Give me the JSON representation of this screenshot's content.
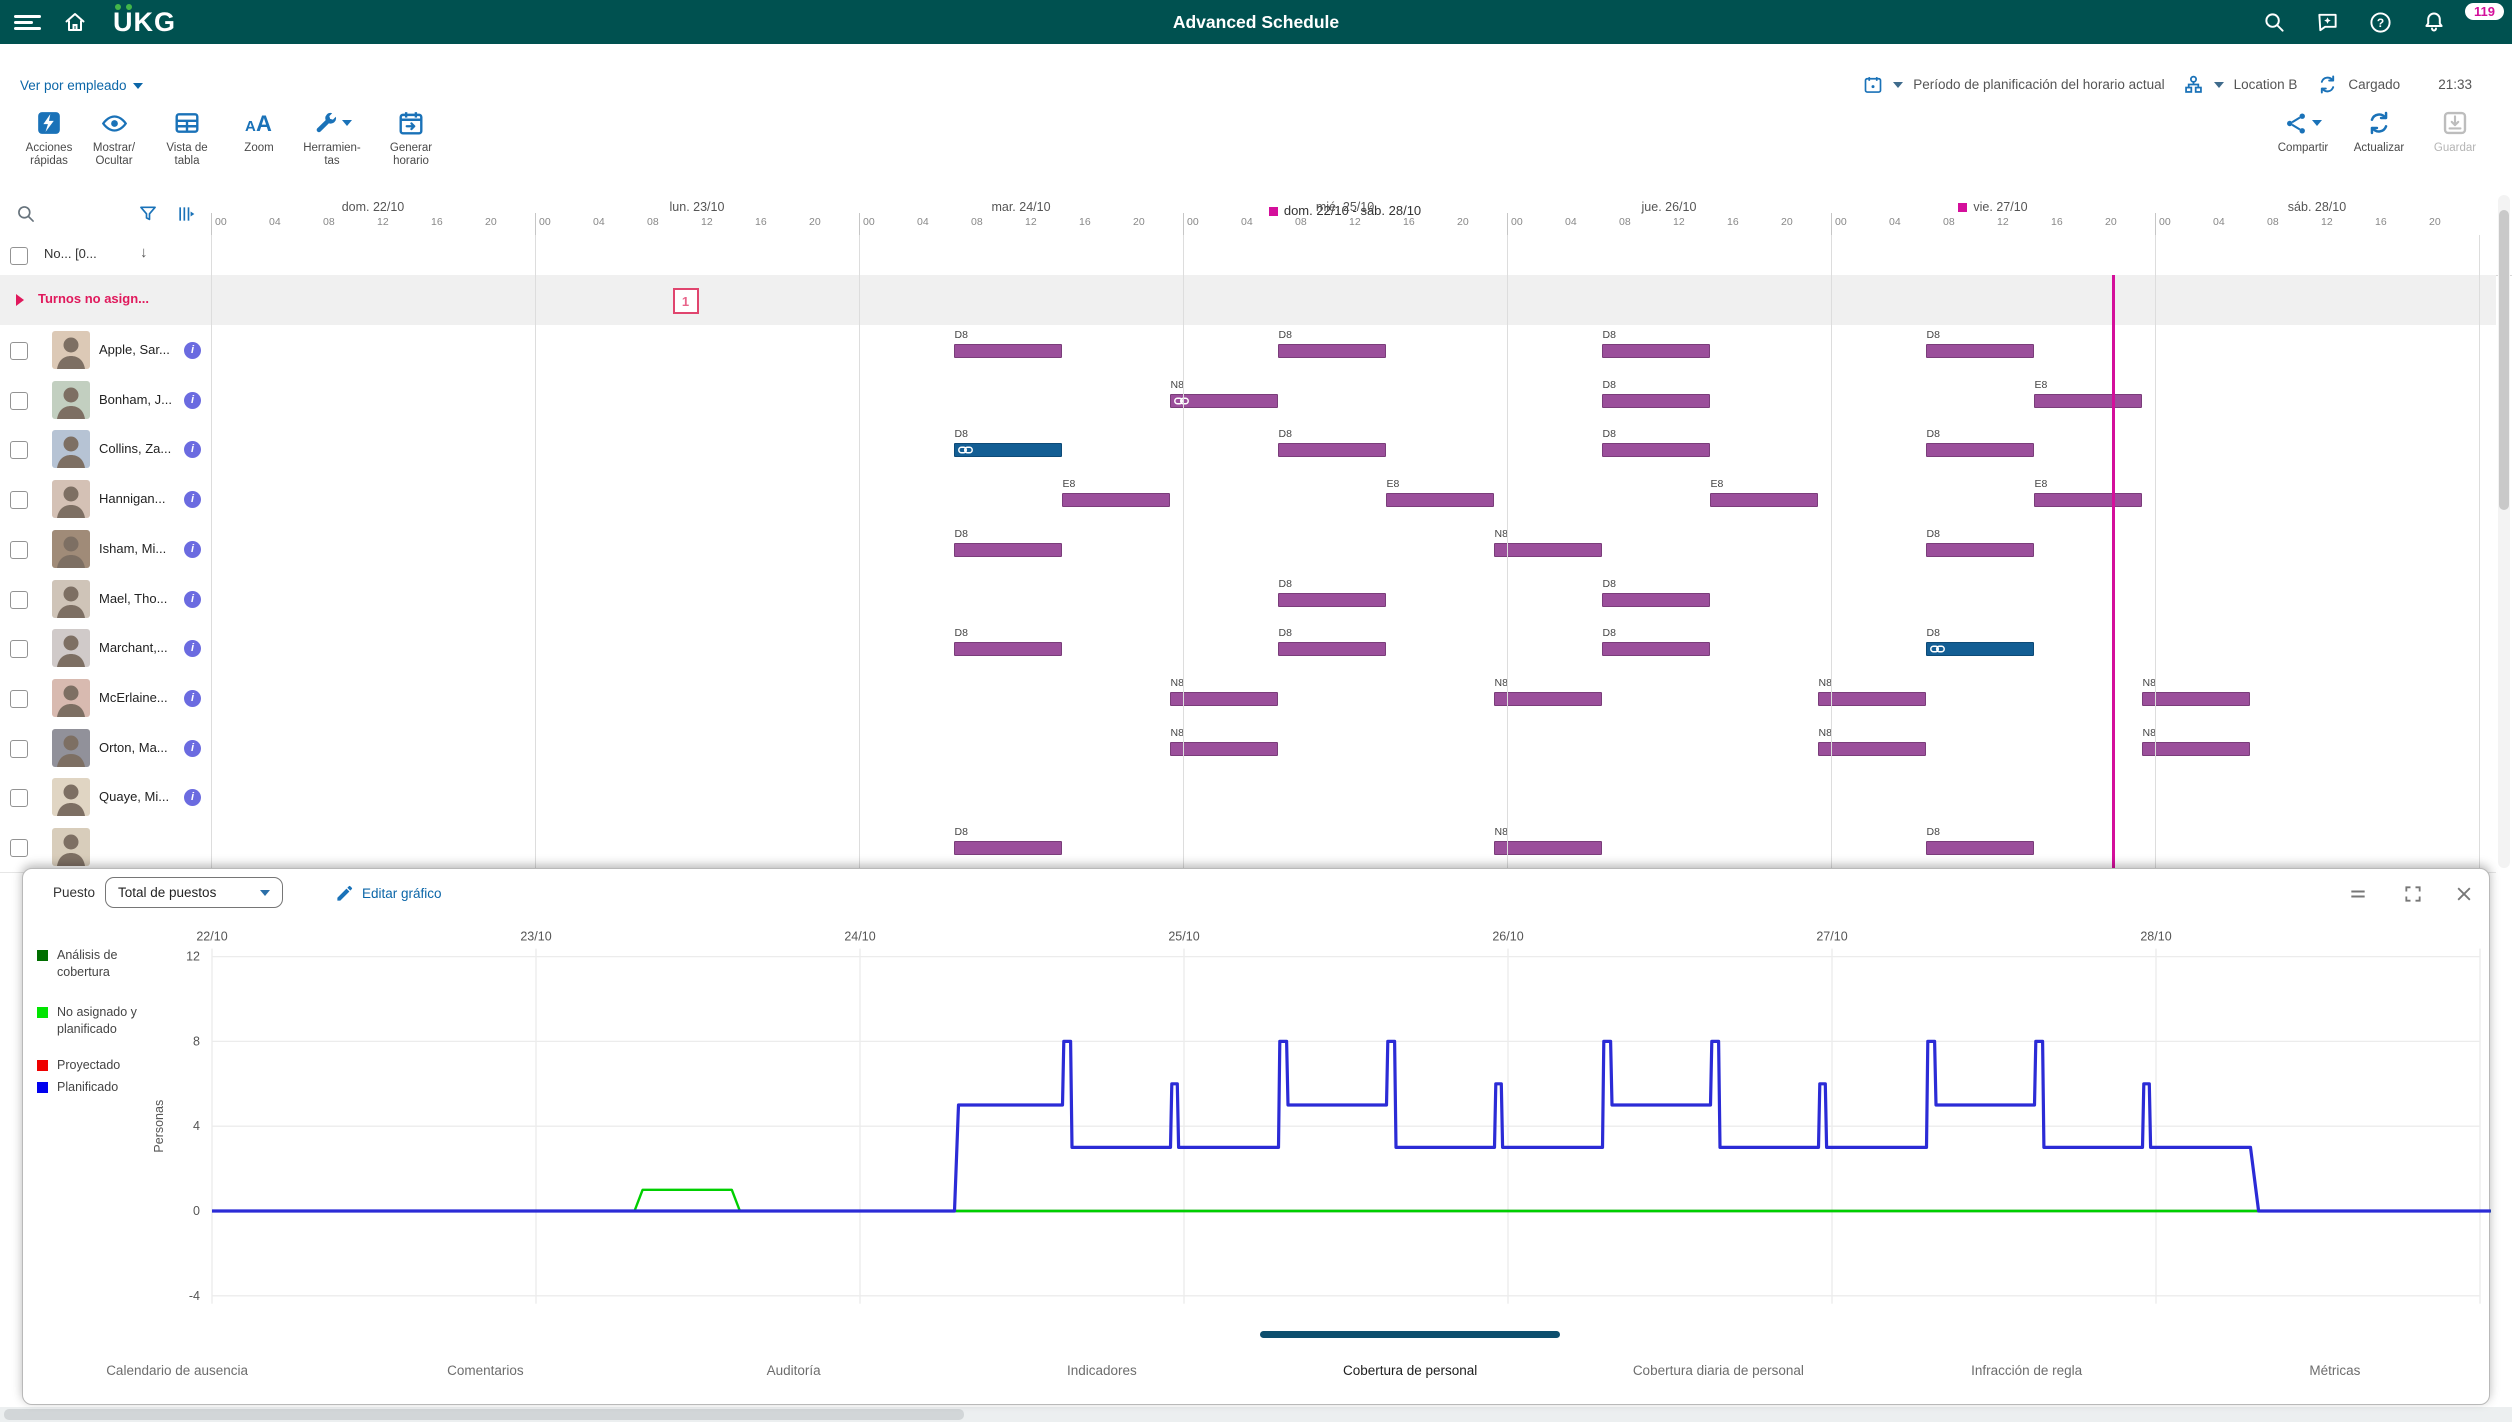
{
  "app": {
    "title": "Advanced Schedule",
    "logo": "UKG",
    "badge": "119"
  },
  "header2": {
    "view_by": "Ver por empleado",
    "period": "Período de planificación del horario actual",
    "location": "Location B",
    "status": "Cargado",
    "time": "21:33"
  },
  "toolbar": {
    "left": [
      {
        "icon": "quick-actions",
        "label": "Acciones\nrápidas"
      },
      {
        "icon": "eye",
        "label": "Mostrar/\nOcultar"
      },
      {
        "icon": "table",
        "label": "Vista de\ntabla"
      },
      {
        "icon": "zoom",
        "label": "Zoom"
      },
      {
        "icon": "tools",
        "label": "Herramien-\ntas",
        "caret": true
      },
      {
        "icon": "calendar-generate",
        "label": "Generar\nhorario"
      }
    ],
    "right": [
      {
        "icon": "share",
        "label": "Compartir",
        "caret": true
      },
      {
        "icon": "refresh",
        "label": "Actualizar"
      },
      {
        "icon": "save",
        "label": "Guardar",
        "disabled": true
      }
    ]
  },
  "gantt": {
    "week_label": "dom. 22/10 - sáb. 28/10",
    "name_column_header": "No... [0...",
    "hours": [
      "00",
      "04",
      "08",
      "12",
      "16",
      "20"
    ],
    "days": [
      {
        "label": "dom. 22/10"
      },
      {
        "label": "lun. 23/10"
      },
      {
        "label": "mar. 24/10"
      },
      {
        "label": "mié. 25/10"
      },
      {
        "label": "jue. 26/10"
      },
      {
        "label": "vie. 27/10",
        "today": true
      },
      {
        "label": "sáb. 28/10"
      }
    ],
    "shift_types": {
      "D8": {
        "start_hour": 7,
        "duration_hours": 8
      },
      "E8": {
        "start_hour": 15,
        "duration_hours": 8
      },
      "N8": {
        "start_hour": 23,
        "duration_hours": 8
      }
    },
    "colors": {
      "shift_purple": "#9b4f9b",
      "shift_purple_border": "#7a3d7a",
      "shift_blue": "#135e94",
      "shift_blue_border": "#0d4a77",
      "marker": "#d40f9b"
    },
    "unassigned": {
      "label": "Turnos no asign...",
      "badge": {
        "day_index": 1,
        "hour_center": 11,
        "count": "1"
      }
    },
    "time_marker": {
      "day_index": 5,
      "hour": 20.85
    },
    "employees": [
      {
        "name": "Apple, Sar...",
        "shifts": [
          {
            "day": 2,
            "type": "D8"
          },
          {
            "day": 3,
            "type": "D8"
          },
          {
            "day": 4,
            "type": "D8"
          },
          {
            "day": 5,
            "type": "D8"
          }
        ]
      },
      {
        "name": "Bonham, J...",
        "shifts": [
          {
            "day": 2,
            "type": "N8",
            "link": true
          },
          {
            "day": 4,
            "type": "D8"
          },
          {
            "day": 5,
            "type": "E8"
          }
        ]
      },
      {
        "name": "Collins, Za...",
        "shifts": [
          {
            "day": 2,
            "type": "D8",
            "variant": "blue",
            "link": true
          },
          {
            "day": 3,
            "type": "D8"
          },
          {
            "day": 4,
            "type": "D8"
          },
          {
            "day": 5,
            "type": "D8"
          }
        ]
      },
      {
        "name": "Hannigan...",
        "shifts": [
          {
            "day": 2,
            "type": "E8"
          },
          {
            "day": 3,
            "type": "E8"
          },
          {
            "day": 4,
            "type": "E8"
          },
          {
            "day": 5,
            "type": "E8"
          }
        ]
      },
      {
        "name": "Isham, Mi...",
        "shifts": [
          {
            "day": 2,
            "type": "D8"
          },
          {
            "day": 3,
            "type": "N8"
          },
          {
            "day": 5,
            "type": "D8"
          }
        ]
      },
      {
        "name": "Mael, Tho...",
        "shifts": [
          {
            "day": 3,
            "type": "D8"
          },
          {
            "day": 4,
            "type": "D8"
          }
        ]
      },
      {
        "name": "Marchant,...",
        "shifts": [
          {
            "day": 2,
            "type": "D8"
          },
          {
            "day": 3,
            "type": "D8"
          },
          {
            "day": 4,
            "type": "D8"
          },
          {
            "day": 5,
            "type": "D8",
            "variant": "blue",
            "link": true
          }
        ]
      },
      {
        "name": "McErlaine...",
        "shifts": [
          {
            "day": 2,
            "type": "N8"
          },
          {
            "day": 3,
            "type": "N8"
          },
          {
            "day": 4,
            "type": "N8"
          },
          {
            "day": 5,
            "type": "N8"
          }
        ]
      },
      {
        "name": "Orton, Ma...",
        "shifts": [
          {
            "day": 2,
            "type": "N8"
          },
          {
            "day": 4,
            "type": "N8"
          },
          {
            "day": 5,
            "type": "N8"
          }
        ]
      },
      {
        "name": "Quaye, Mi...",
        "shifts": []
      },
      {
        "name": "",
        "partial": true,
        "shifts": [
          {
            "day": 2,
            "type": "D8"
          },
          {
            "day": 3,
            "type": "N8"
          },
          {
            "day": 5,
            "type": "D8"
          }
        ]
      }
    ]
  },
  "panel": {
    "position_label": "Puesto",
    "position_value": "Total de puestos",
    "edit_chart_label": "Editar gráfico",
    "legend": [
      {
        "color": "#006e00",
        "label": "Análisis de\ncobertura"
      },
      {
        "color": "#00e400",
        "label": "No asignado y\nplanificado"
      },
      {
        "color": "#ee0000",
        "label": "Proyectado"
      },
      {
        "color": "#0000ee",
        "label": "Planificado"
      }
    ],
    "tabs": [
      {
        "label": "Calendario de ausencia"
      },
      {
        "label": "Comentarios"
      },
      {
        "label": "Auditoría"
      },
      {
        "label": "Indicadores"
      },
      {
        "label": "Cobertura de personal",
        "selected": true
      },
      {
        "label": "Cobertura diaria de personal"
      },
      {
        "label": "Infracción de regla"
      },
      {
        "label": "Métricas"
      }
    ]
  },
  "chart_data": {
    "type": "line",
    "ylabel": "Personas",
    "x_tick_labels": [
      "22/10",
      "23/10",
      "24/10",
      "25/10",
      "26/10",
      "27/10",
      "28/10"
    ],
    "x_unit": "hours from 22/10 00:00",
    "yticks": [
      12,
      8,
      4,
      0,
      -4
    ],
    "ylim": [
      -4,
      12
    ],
    "grid": true,
    "legend_position": "left",
    "series": [
      {
        "name": "Proyectado",
        "color": "#ee1111",
        "width": 2,
        "points": [
          [
            0,
            0
          ],
          [
            168.8,
            0
          ]
        ]
      },
      {
        "name": "Análisis de cobertura",
        "color": "#1e7a1e",
        "width": 2.6,
        "points": [
          [
            0,
            0
          ],
          [
            168.8,
            0
          ]
        ]
      },
      {
        "name": "No asignado y planificado",
        "color": "#00cf00",
        "width": 2.4,
        "points": [
          [
            0,
            0
          ],
          [
            31.3,
            0
          ],
          [
            31.9,
            1
          ],
          [
            38.5,
            1
          ],
          [
            39.1,
            0
          ],
          [
            168.8,
            0
          ]
        ]
      },
      {
        "name": "Planificado",
        "color": "#2b2bd6",
        "width": 3.2,
        "points": [
          [
            0,
            0
          ],
          [
            55,
            0
          ],
          [
            55.3,
            5
          ],
          [
            63,
            5
          ],
          [
            63.1,
            8
          ],
          [
            63.6,
            8
          ],
          [
            63.7,
            3
          ],
          [
            71,
            3
          ],
          [
            71.1,
            6
          ],
          [
            71.5,
            6
          ],
          [
            71.6,
            3
          ],
          [
            79,
            3
          ],
          [
            79.1,
            8
          ],
          [
            79.6,
            8
          ],
          [
            79.7,
            5
          ],
          [
            87,
            5
          ],
          [
            87.1,
            8
          ],
          [
            87.6,
            8
          ],
          [
            87.7,
            3
          ],
          [
            95,
            3
          ],
          [
            95.1,
            6
          ],
          [
            95.5,
            6
          ],
          [
            95.6,
            3
          ],
          [
            103,
            3
          ],
          [
            103.1,
            8
          ],
          [
            103.6,
            8
          ],
          [
            103.7,
            5
          ],
          [
            111,
            5
          ],
          [
            111.1,
            8
          ],
          [
            111.6,
            8
          ],
          [
            111.7,
            3
          ],
          [
            119,
            3
          ],
          [
            119.1,
            6
          ],
          [
            119.5,
            6
          ],
          [
            119.6,
            3
          ],
          [
            127,
            3
          ],
          [
            127.1,
            8
          ],
          [
            127.6,
            8
          ],
          [
            127.7,
            5
          ],
          [
            135,
            5
          ],
          [
            135.1,
            8
          ],
          [
            135.6,
            8
          ],
          [
            135.7,
            3
          ],
          [
            143,
            3
          ],
          [
            143.1,
            6
          ],
          [
            143.5,
            6
          ],
          [
            143.6,
            3
          ],
          [
            151,
            3
          ],
          [
            151.6,
            0
          ],
          [
            168.8,
            0
          ]
        ]
      }
    ]
  }
}
